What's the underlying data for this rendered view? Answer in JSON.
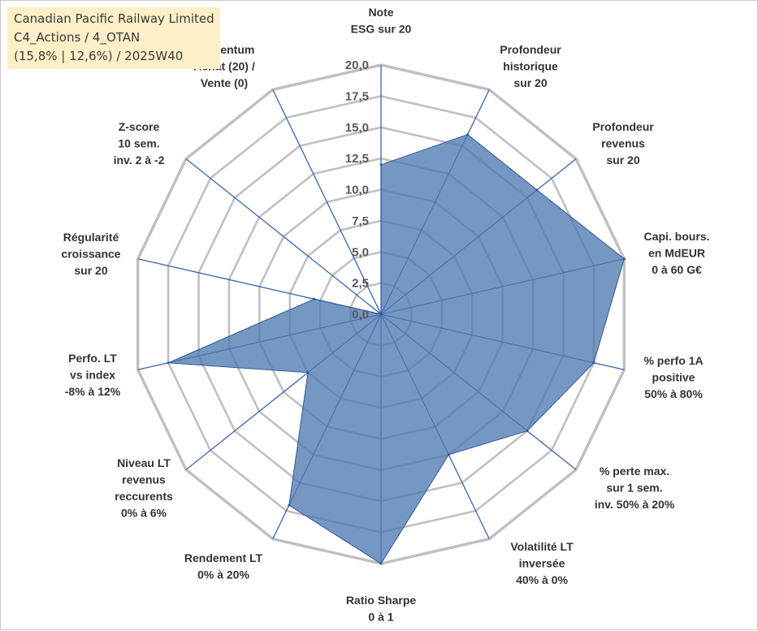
{
  "header": {
    "title_line1": "Canadian Pacific Railway Limited",
    "title_line2": "C4_Actions / 4_OTAN",
    "title_line3": "(15,8% | 12,6%) / 2025W40"
  },
  "colors": {
    "fill": "#4f7ab1",
    "series_line": "#2e5a9a",
    "grid": "#c0c0c0",
    "spokes": "#3b66b0",
    "title_bg": "#fdefc7"
  },
  "chart_data": {
    "type": "radar",
    "scale_min": 0,
    "scale_max": 20,
    "tick_labels": [
      "0,0",
      "2,5",
      "5,0",
      "7,5",
      "10,0",
      "12,5",
      "15,0",
      "17,5",
      "20,0"
    ],
    "axes": [
      {
        "label": [
          "Note",
          "ESG sur 20"
        ],
        "value": 12
      },
      {
        "label": [
          "Profondeur",
          "historique",
          "sur 20"
        ],
        "value": 16
      },
      {
        "label": [
          "Profondeur",
          "revenus",
          "sur 20"
        ],
        "value": 16
      },
      {
        "label": [
          "Capi. bours.",
          "en MdEUR",
          "0 à 60 G€"
        ],
        "value": 20
      },
      {
        "label": [
          "% perfo 1A",
          "positive",
          "50% à 80%"
        ],
        "value": 17.5
      },
      {
        "label": [
          "% perte max.",
          "sur 1 sem.",
          "inv. 50% à 20%"
        ],
        "value": 15
      },
      {
        "label": [
          "Volatilité LT",
          "inversée",
          "40% à 0%"
        ],
        "value": 12.5
      },
      {
        "label": [
          "Ratio Sharpe",
          "0 à 1"
        ],
        "value": 20
      },
      {
        "label": [
          "Rendement LT",
          "0% à 20%"
        ],
        "value": 17
      },
      {
        "label": [
          "Niveau LT",
          "revenus",
          "reccurents",
          "0% à 6%"
        ],
        "value": 7.5
      },
      {
        "label": [
          "Perfo. LT",
          "vs index",
          "-8% à 12%"
        ],
        "value": 17.5
      },
      {
        "label": [
          "Régularité",
          "croissance",
          "sur 20"
        ],
        "value": 5.5
      },
      {
        "label": [
          "Z-score",
          "10 sem.",
          "inv. 2 à -2"
        ],
        "value": 0
      },
      {
        "label": [
          "Momentum",
          "Achat (20) /",
          "Vente (0)"
        ],
        "value": 0
      }
    ]
  }
}
